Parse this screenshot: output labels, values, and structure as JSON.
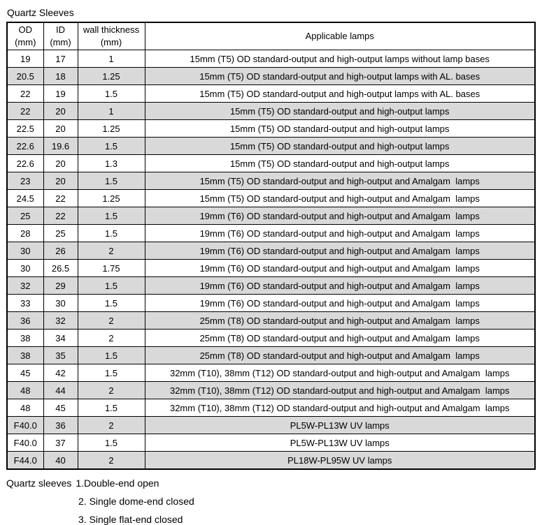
{
  "title": "Quartz Sleeves",
  "table": {
    "headers": [
      "OD\n(mm)",
      "ID\n(mm)",
      "wall thickness\n(mm)",
      "Applicable lamps"
    ],
    "rows": [
      {
        "od": "19",
        "id": "17",
        "wall": "1",
        "lamps": "15mm (T5) OD standard-output and high-output lamps without lamp bases"
      },
      {
        "od": "20.5",
        "id": "18",
        "wall": "1.25",
        "lamps": "15mm (T5) OD standard-output and high-output lamps with AL. bases"
      },
      {
        "od": "22",
        "id": "19",
        "wall": "1.5",
        "lamps": "15mm (T5) OD standard-output and high-output lamps with AL. bases"
      },
      {
        "od": "22",
        "id": "20",
        "wall": "1",
        "lamps": "15mm (T5) OD standard-output and high-output lamps"
      },
      {
        "od": "22.5",
        "id": "20",
        "wall": "1.25",
        "lamps": "15mm (T5) OD standard-output and high-output lamps"
      },
      {
        "od": "22.6",
        "id": "19.6",
        "wall": "1.5",
        "lamps": "15mm (T5) OD standard-output and high-output lamps"
      },
      {
        "od": "22.6",
        "id": "20",
        "wall": "1.3",
        "lamps": "15mm (T5) OD standard-output and high-output lamps"
      },
      {
        "od": "23",
        "id": "20",
        "wall": "1.5",
        "lamps": "15mm (T5) OD standard-output and high-output and Amalgam  lamps"
      },
      {
        "od": "24.5",
        "id": "22",
        "wall": "1.25",
        "lamps": "15mm (T5) OD standard-output and high-output and Amalgam  lamps"
      },
      {
        "od": "25",
        "id": "22",
        "wall": "1.5",
        "lamps": "19mm (T6) OD standard-output and high-output and Amalgam  lamps"
      },
      {
        "od": "28",
        "id": "25",
        "wall": "1.5",
        "lamps": "19mm (T6) OD standard-output and high-output and Amalgam  lamps"
      },
      {
        "od": "30",
        "id": "26",
        "wall": "2",
        "lamps": "19mm (T6) OD standard-output and high-output and Amalgam  lamps"
      },
      {
        "od": "30",
        "id": "26.5",
        "wall": "1.75",
        "lamps": "19mm (T6) OD standard-output and high-output and Amalgam  lamps"
      },
      {
        "od": "32",
        "id": "29",
        "wall": "1.5",
        "lamps": "19mm (T6) OD standard-output and high-output and Amalgam  lamps"
      },
      {
        "od": "33",
        "id": "30",
        "wall": "1.5",
        "lamps": "19mm (T6) OD standard-output and high-output and Amalgam  lamps"
      },
      {
        "od": "36",
        "id": "32",
        "wall": "2",
        "lamps": "25mm (T8) OD standard-output and high-output and Amalgam  lamps"
      },
      {
        "od": "38",
        "id": "34",
        "wall": "2",
        "lamps": "25mm (T8) OD standard-output and high-output and Amalgam  lamps"
      },
      {
        "od": "38",
        "id": "35",
        "wall": "1.5",
        "lamps": "25mm (T8) OD standard-output and high-output and Amalgam  lamps"
      },
      {
        "od": "45",
        "id": "42",
        "wall": "1.5",
        "lamps": "32mm (T10), 38mm (T12) OD standard-output and high-output and Amalgam  lamps"
      },
      {
        "od": "48",
        "id": "44",
        "wall": "2",
        "lamps": "32mm (T10), 38mm (T12) OD standard-output and high-output and Amalgam  lamps"
      },
      {
        "od": "48",
        "id": "45",
        "wall": "1.5",
        "lamps": "32mm (T10), 38mm (T12) OD standard-output and high-output and Amalgam  lamps"
      },
      {
        "od": "F40.0",
        "id": "36",
        "wall": "2",
        "lamps": "PL5W-PL13W UV lamps"
      },
      {
        "od": "F40.0",
        "id": "37",
        "wall": "1.5",
        "lamps": "PL5W-PL13W UV lamps"
      },
      {
        "od": "F44.0",
        "id": "40",
        "wall": "2",
        "lamps": "PL18W-PL95W UV lamps"
      }
    ]
  },
  "footer": {
    "prefix": "Quartz sleeves",
    "note1": "1.Double-end open",
    "note2": "2. Single dome-end closed",
    "note3": "3. Single flat-end closed"
  },
  "colors": {
    "row_shading": "#d9d9d9",
    "border": "#000000",
    "text": "#000000",
    "background": "#ffffff"
  }
}
